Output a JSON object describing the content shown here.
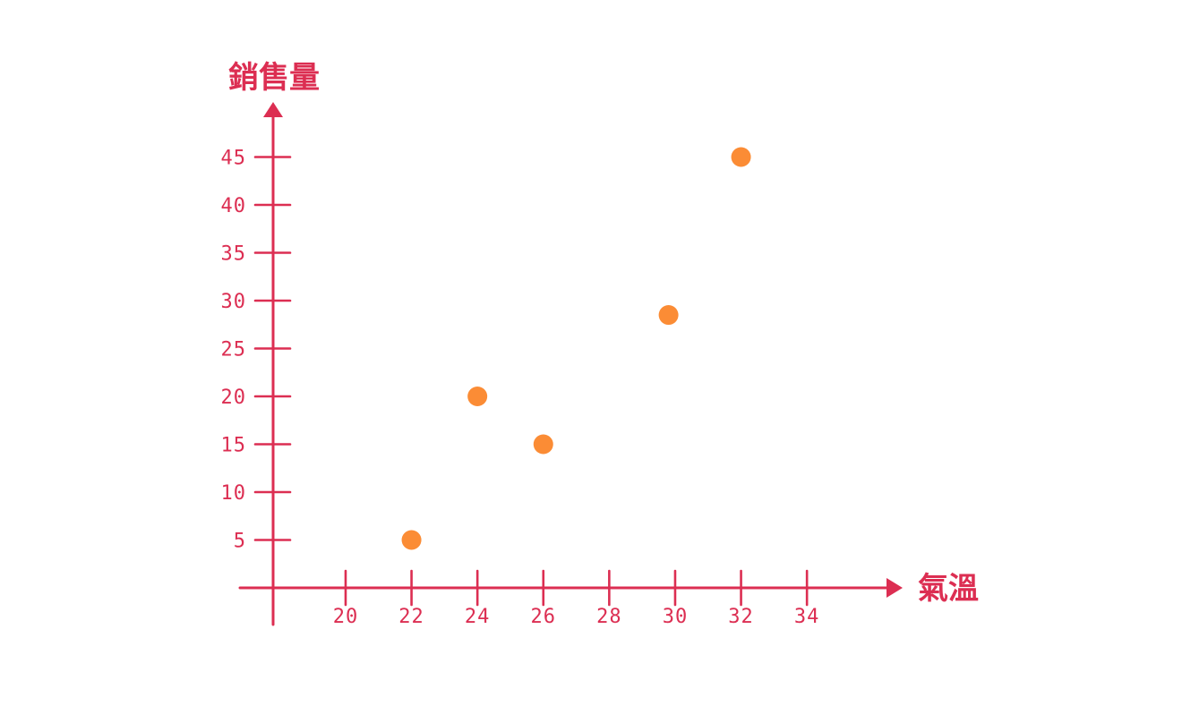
{
  "chart_data": {
    "type": "scatter",
    "title": "",
    "xlabel": "氣溫",
    "ylabel": "銷售量",
    "x_ticks": [
      20,
      22,
      24,
      26,
      28,
      30,
      32,
      34
    ],
    "y_ticks": [
      5,
      10,
      15,
      20,
      25,
      30,
      35,
      40,
      45
    ],
    "xlim": [
      17.8,
      37.8
    ],
    "ylim": [
      0,
      48
    ],
    "grid": false,
    "legend": "none",
    "series": [
      {
        "points": [
          {
            "x": 22,
            "y": 5
          },
          {
            "x": 24,
            "y": 20
          },
          {
            "x": 26,
            "y": 15
          },
          {
            "x": 29.8,
            "y": 28.5
          },
          {
            "x": 32,
            "y": 45
          }
        ]
      }
    ]
  },
  "colors": {
    "axis": "#dc2e52",
    "marker": "#fb8c35"
  }
}
